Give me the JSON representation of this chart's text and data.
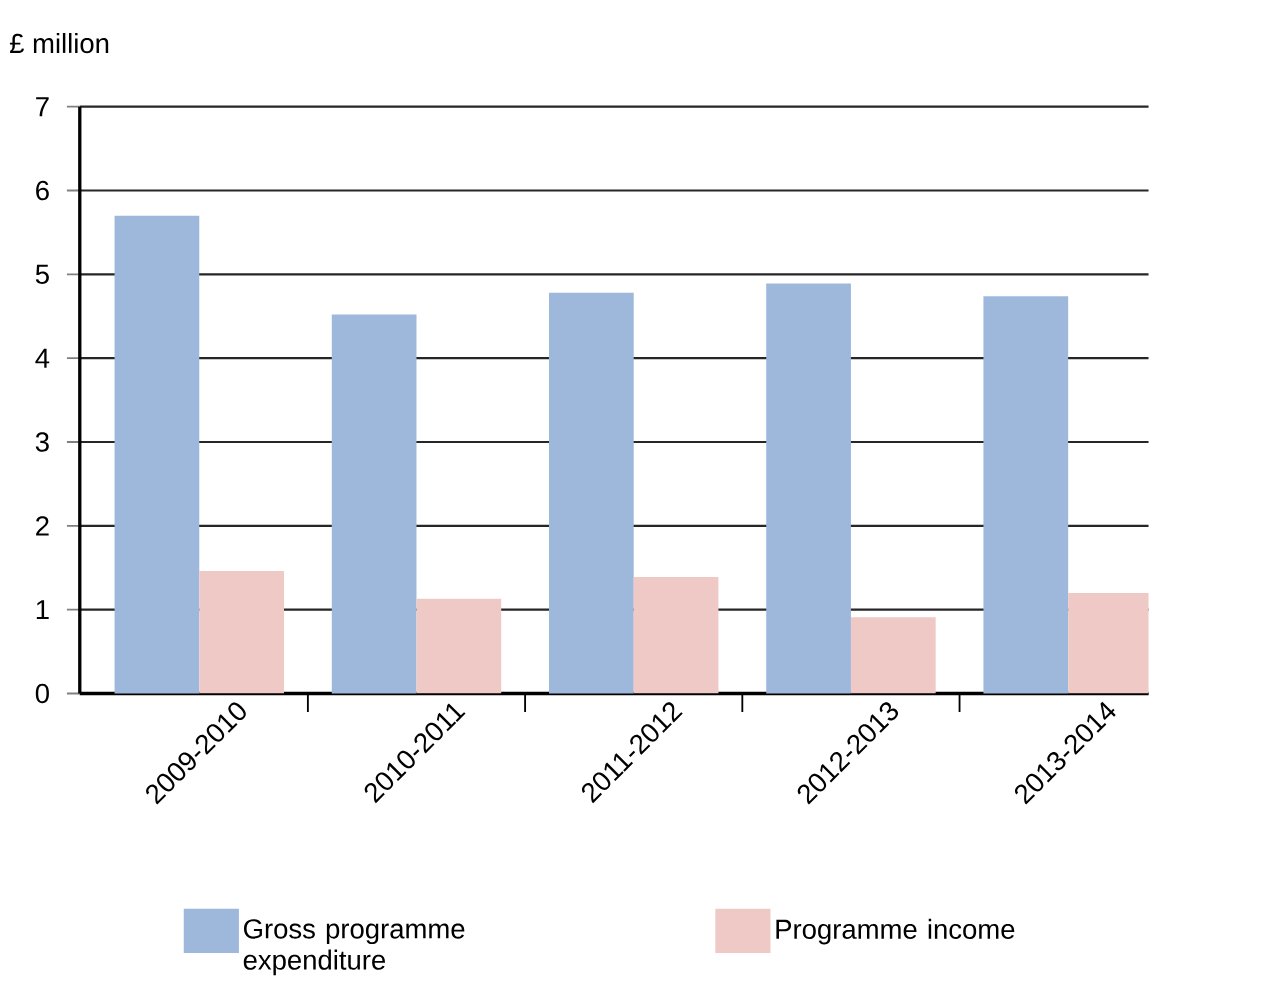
{
  "chart_data": {
    "type": "bar",
    "ylabel": "£ million",
    "categories": [
      "2009-2010",
      "2010-2011",
      "2011-2012",
      "2012-2013",
      "2013-2014"
    ],
    "series": [
      {
        "name": "Gross programme expenditure",
        "color": "#9db8db",
        "values": [
          5.7,
          4.52,
          4.78,
          4.89,
          4.74
        ]
      },
      {
        "name": "Programme income",
        "color": "#efc9c6",
        "values": [
          1.46,
          1.13,
          1.39,
          0.91,
          1.2
        ]
      }
    ],
    "ylim": [
      0,
      7
    ],
    "yticks": [
      0,
      1,
      2,
      3,
      4,
      5,
      6,
      7
    ],
    "grid": "y",
    "legend": "bottom"
  }
}
